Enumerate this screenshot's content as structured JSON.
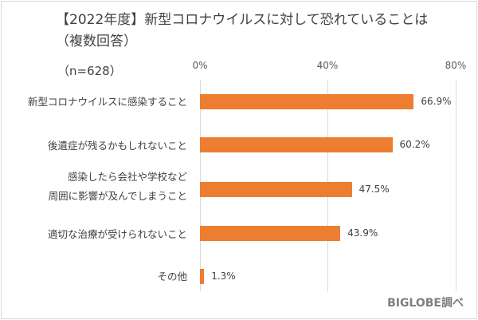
{
  "chart_data": {
    "type": "bar",
    "orientation": "horizontal",
    "title": "【2022年度】新型コロナウイルスに対して恐れていることは（複数回答）",
    "title_line1": "【2022年度】新型コロナウイルスに対して恐れていることは",
    "title_line2": "（複数回答）",
    "sample": "（n=628）",
    "categories": [
      "新型コロナウイルスに感染すること",
      "後遺症が残るかもしれないこと",
      "感染したら会社や学校など周囲に影響が及んでしまうこと",
      "適切な治療が受けられないこと",
      "その他"
    ],
    "category_lines": [
      [
        "新型コロナウイルスに感染すること"
      ],
      [
        "後遺症が残るかもしれないこと"
      ],
      [
        "感染したら会社や学校など",
        "周囲に影響が及んでしまうこと"
      ],
      [
        "適切な治療が受けられないこと"
      ],
      [
        "その他"
      ]
    ],
    "values": [
      66.9,
      60.2,
      47.5,
      43.9,
      1.3
    ],
    "value_labels": [
      "66.9%",
      "60.2%",
      "47.5%",
      "43.9%",
      "1.3%"
    ],
    "xlabel": "",
    "ylabel": "",
    "xlim": [
      0,
      80
    ],
    "ticks": [
      "0%",
      "40%",
      "80%"
    ],
    "grid": true,
    "color": "#ED7D31",
    "source": "BIGLOBE調べ"
  }
}
